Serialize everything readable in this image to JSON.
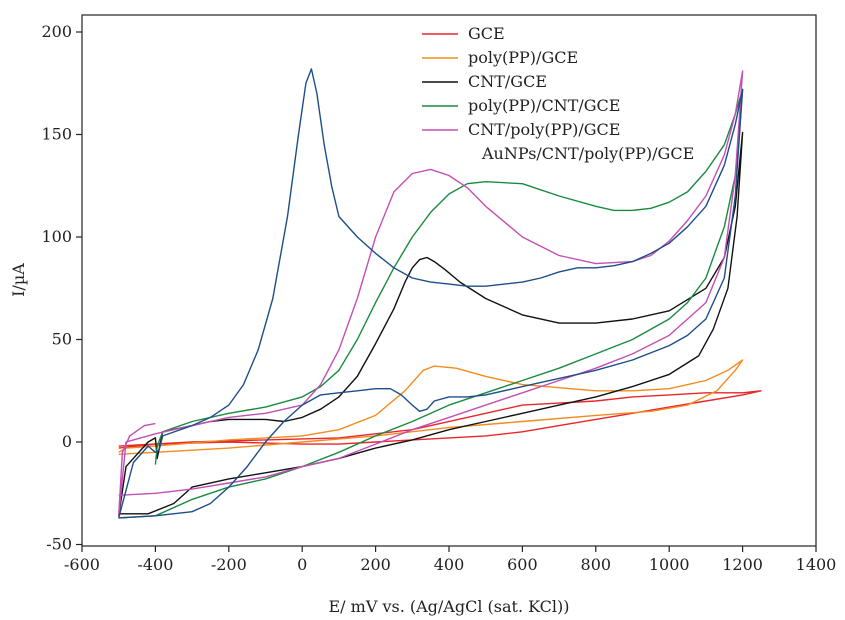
{
  "chart_data": {
    "type": "line",
    "title": "",
    "xlabel": "E/ mV vs. (Ag/AgCl (sat. KCl))",
    "ylabel": "I/µA",
    "xlim": [
      -600,
      1400
    ],
    "ylim": [
      -50,
      210
    ],
    "xticks": [
      -600,
      -400,
      -200,
      0,
      200,
      400,
      600,
      800,
      1000,
      1200,
      1400
    ],
    "yticks": [
      -50,
      0,
      50,
      100,
      150,
      200
    ],
    "xtick_labels": [
      "-600",
      "-400",
      "-200",
      "0",
      "200",
      "400",
      "600",
      "800",
      "1000",
      "1200",
      "1400"
    ],
    "ytick_labels": [
      "-50",
      "0",
      "50",
      "100",
      "150",
      "200"
    ],
    "grid": false,
    "legend_position": "top-right",
    "series": [
      {
        "name": "GCE",
        "color": "#e8262b",
        "points": [
          [
            -500,
            -2
          ],
          [
            -300,
            0
          ],
          [
            -100,
            1
          ],
          [
            100,
            2
          ],
          [
            300,
            6
          ],
          [
            500,
            14
          ],
          [
            600,
            18
          ],
          [
            700,
            19
          ],
          [
            800,
            20
          ],
          [
            900,
            22
          ],
          [
            1000,
            23
          ],
          [
            1100,
            24
          ],
          [
            1200,
            24
          ],
          [
            1250,
            25
          ],
          [
            1200,
            23
          ],
          [
            1100,
            20
          ],
          [
            1000,
            17
          ],
          [
            900,
            14
          ],
          [
            800,
            11
          ],
          [
            700,
            8
          ],
          [
            600,
            5
          ],
          [
            500,
            3
          ],
          [
            400,
            2
          ],
          [
            300,
            1
          ],
          [
            200,
            0
          ],
          [
            100,
            -1
          ],
          [
            0,
            -1
          ],
          [
            -200,
            0
          ],
          [
            -400,
            -1
          ],
          [
            -500,
            -3
          ]
        ]
      },
      {
        "name": "poly(PP)/GCE",
        "color": "#f28c1e",
        "points": [
          [
            -500,
            -5
          ],
          [
            -480,
            -3
          ],
          [
            -400,
            -2
          ],
          [
            -200,
            1
          ],
          [
            0,
            3
          ],
          [
            100,
            6
          ],
          [
            200,
            13
          ],
          [
            280,
            25
          ],
          [
            330,
            35
          ],
          [
            360,
            37
          ],
          [
            420,
            36
          ],
          [
            500,
            32
          ],
          [
            600,
            28
          ],
          [
            800,
            25
          ],
          [
            900,
            25
          ],
          [
            1000,
            26
          ],
          [
            1100,
            30
          ],
          [
            1160,
            35
          ],
          [
            1200,
            40
          ],
          [
            1180,
            35
          ],
          [
            1130,
            25
          ],
          [
            1050,
            18
          ],
          [
            950,
            15
          ],
          [
            800,
            13
          ],
          [
            600,
            10
          ],
          [
            400,
            7
          ],
          [
            200,
            3
          ],
          [
            0,
            0
          ],
          [
            -200,
            -3
          ],
          [
            -400,
            -5
          ],
          [
            -500,
            -6
          ]
        ]
      },
      {
        "name": "CNT/GCE",
        "color": "#111111",
        "points": [
          [
            -500,
            -36
          ],
          [
            -480,
            -12
          ],
          [
            -420,
            0
          ],
          [
            -400,
            2
          ],
          [
            -395,
            -8
          ],
          [
            -380,
            5
          ],
          [
            -300,
            8
          ],
          [
            -250,
            10
          ],
          [
            -200,
            11
          ],
          [
            -100,
            11
          ],
          [
            -50,
            10
          ],
          [
            0,
            12
          ],
          [
            50,
            16
          ],
          [
            100,
            22
          ],
          [
            150,
            32
          ],
          [
            200,
            48
          ],
          [
            250,
            65
          ],
          [
            280,
            78
          ],
          [
            300,
            85
          ],
          [
            320,
            89
          ],
          [
            340,
            90
          ],
          [
            360,
            88
          ],
          [
            390,
            84
          ],
          [
            430,
            78
          ],
          [
            500,
            70
          ],
          [
            600,
            62
          ],
          [
            700,
            58
          ],
          [
            800,
            58
          ],
          [
            900,
            60
          ],
          [
            1000,
            64
          ],
          [
            1100,
            75
          ],
          [
            1150,
            90
          ],
          [
            1180,
            115
          ],
          [
            1200,
            151
          ],
          [
            1185,
            110
          ],
          [
            1160,
            75
          ],
          [
            1120,
            55
          ],
          [
            1080,
            42
          ],
          [
            1000,
            33
          ],
          [
            900,
            27
          ],
          [
            800,
            22
          ],
          [
            700,
            18
          ],
          [
            600,
            14
          ],
          [
            500,
            10
          ],
          [
            400,
            6
          ],
          [
            300,
            1
          ],
          [
            200,
            -3
          ],
          [
            100,
            -8
          ],
          [
            0,
            -12
          ],
          [
            -100,
            -15
          ],
          [
            -200,
            -18
          ],
          [
            -300,
            -22
          ],
          [
            -350,
            -30
          ],
          [
            -420,
            -35
          ],
          [
            -500,
            -35
          ]
        ]
      },
      {
        "name": "poly(PP)/CNT/GCE",
        "color": "#198a3f",
        "points": [
          [
            -400,
            -11
          ],
          [
            -395,
            -2
          ],
          [
            -380,
            5
          ],
          [
            -300,
            10
          ],
          [
            -200,
            14
          ],
          [
            -100,
            17
          ],
          [
            0,
            22
          ],
          [
            50,
            27
          ],
          [
            100,
            35
          ],
          [
            150,
            50
          ],
          [
            200,
            68
          ],
          [
            250,
            85
          ],
          [
            300,
            100
          ],
          [
            350,
            112
          ],
          [
            400,
            121
          ],
          [
            450,
            126
          ],
          [
            500,
            127
          ],
          [
            600,
            126
          ],
          [
            700,
            120
          ],
          [
            800,
            115
          ],
          [
            850,
            113
          ],
          [
            900,
            113
          ],
          [
            950,
            114
          ],
          [
            1000,
            117
          ],
          [
            1050,
            122
          ],
          [
            1100,
            132
          ],
          [
            1150,
            145
          ],
          [
            1180,
            160
          ],
          [
            1200,
            172
          ],
          [
            1180,
            130
          ],
          [
            1150,
            105
          ],
          [
            1100,
            80
          ],
          [
            1050,
            68
          ],
          [
            1000,
            60
          ],
          [
            900,
            50
          ],
          [
            800,
            43
          ],
          [
            700,
            36
          ],
          [
            600,
            30
          ],
          [
            500,
            24
          ],
          [
            400,
            18
          ],
          [
            300,
            10
          ],
          [
            200,
            3
          ],
          [
            100,
            -5
          ],
          [
            0,
            -12
          ],
          [
            -100,
            -18
          ],
          [
            -200,
            -22
          ],
          [
            -300,
            -28
          ],
          [
            -400,
            -36
          ],
          [
            -500,
            -37
          ]
        ]
      },
      {
        "name": "CNT/poly(PP)/GCE",
        "color": "#c34fb5",
        "points": [
          [
            -500,
            -26
          ],
          [
            -400,
            -25
          ],
          [
            -300,
            -23
          ],
          [
            -200,
            -20
          ],
          [
            -100,
            -17
          ],
          [
            0,
            -12
          ],
          [
            100,
            -8
          ],
          [
            200,
            -1
          ],
          [
            300,
            6
          ],
          [
            400,
            12
          ],
          [
            500,
            18
          ],
          [
            600,
            24
          ],
          [
            700,
            30
          ],
          [
            800,
            36
          ],
          [
            900,
            43
          ],
          [
            1000,
            52
          ],
          [
            1100,
            68
          ],
          [
            1150,
            90
          ],
          [
            1180,
            130
          ],
          [
            1200,
            181
          ],
          [
            1180,
            160
          ],
          [
            1150,
            140
          ],
          [
            1100,
            120
          ],
          [
            1050,
            108
          ],
          [
            1000,
            98
          ],
          [
            950,
            91
          ],
          [
            900,
            88
          ],
          [
            800,
            87
          ],
          [
            700,
            91
          ],
          [
            600,
            100
          ],
          [
            500,
            115
          ],
          [
            450,
            124
          ],
          [
            400,
            130
          ],
          [
            350,
            133
          ],
          [
            300,
            131
          ],
          [
            250,
            122
          ],
          [
            200,
            100
          ],
          [
            150,
            70
          ],
          [
            100,
            45
          ],
          [
            50,
            28
          ],
          [
            0,
            18
          ],
          [
            -100,
            14
          ],
          [
            -200,
            12
          ],
          [
            -300,
            8
          ],
          [
            -400,
            4
          ],
          [
            -480,
            0
          ],
          [
            -500,
            -36
          ],
          [
            -490,
            -5
          ],
          [
            -470,
            3
          ],
          [
            -430,
            8
          ],
          [
            -400,
            9
          ]
        ]
      },
      {
        "name": "AuNPs/CNT/poly(PP)/GCE",
        "color": "#1d4e89",
        "points": [
          [
            -500,
            -37
          ],
          [
            -400,
            -36
          ],
          [
            -300,
            -34
          ],
          [
            -250,
            -30
          ],
          [
            -200,
            -22
          ],
          [
            -150,
            -12
          ],
          [
            -100,
            0
          ],
          [
            -50,
            10
          ],
          [
            0,
            18
          ],
          [
            50,
            23
          ],
          [
            100,
            24
          ],
          [
            150,
            25
          ],
          [
            200,
            26
          ],
          [
            240,
            26
          ],
          [
            270,
            23
          ],
          [
            300,
            18
          ],
          [
            320,
            15
          ],
          [
            340,
            16
          ],
          [
            360,
            20
          ],
          [
            400,
            22
          ],
          [
            450,
            22
          ],
          [
            500,
            23
          ],
          [
            600,
            27
          ],
          [
            700,
            31
          ],
          [
            800,
            35
          ],
          [
            900,
            40
          ],
          [
            1000,
            47
          ],
          [
            1050,
            52
          ],
          [
            1100,
            60
          ],
          [
            1150,
            80
          ],
          [
            1180,
            120
          ],
          [
            1200,
            172
          ],
          [
            1180,
            155
          ],
          [
            1150,
            135
          ],
          [
            1100,
            115
          ],
          [
            1050,
            105
          ],
          [
            1000,
            97
          ],
          [
            950,
            92
          ],
          [
            900,
            88
          ],
          [
            850,
            86
          ],
          [
            800,
            85
          ],
          [
            750,
            85
          ],
          [
            700,
            83
          ],
          [
            650,
            80
          ],
          [
            600,
            78
          ],
          [
            500,
            76
          ],
          [
            450,
            76
          ],
          [
            400,
            77
          ],
          [
            350,
            78
          ],
          [
            300,
            80
          ],
          [
            250,
            85
          ],
          [
            200,
            92
          ],
          [
            150,
            100
          ],
          [
            100,
            110
          ],
          [
            80,
            125
          ],
          [
            60,
            145
          ],
          [
            40,
            170
          ],
          [
            25,
            182
          ],
          [
            10,
            175
          ],
          [
            -10,
            150
          ],
          [
            -40,
            110
          ],
          [
            -80,
            70
          ],
          [
            -120,
            45
          ],
          [
            -160,
            28
          ],
          [
            -200,
            18
          ],
          [
            -250,
            12
          ],
          [
            -300,
            8
          ],
          [
            -380,
            3
          ],
          [
            -390,
            -4
          ],
          [
            -400,
            -5
          ],
          [
            -420,
            -2
          ],
          [
            -460,
            -10
          ],
          [
            -500,
            -37
          ]
        ]
      }
    ]
  }
}
